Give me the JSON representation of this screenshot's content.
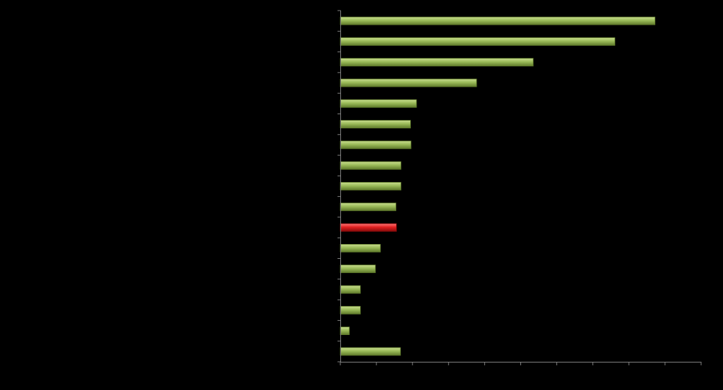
{
  "chart_data": {
    "type": "bar",
    "orientation": "horizontal",
    "values": [
      62.8,
      54.8,
      38.5,
      27.2,
      15.2,
      14.0,
      14.1,
      12.1,
      12.1,
      11.1,
      11.2,
      8.0,
      7.0,
      4.0,
      4.0,
      1.8,
      12.0
    ],
    "highlight_index": 10,
    "xlim": [
      0,
      72
    ],
    "x_tick_count": 10,
    "grid": false,
    "legend": "none",
    "colors": {
      "background": "#000000",
      "bar": "#9bbb59",
      "bar_light": "#c9dd8f",
      "bar_dark": "#5f7a2b",
      "highlight": "#e02020",
      "highlight_light": "#ff7a7a",
      "highlight_dark": "#8a0b0b",
      "axis": "#808080"
    }
  }
}
